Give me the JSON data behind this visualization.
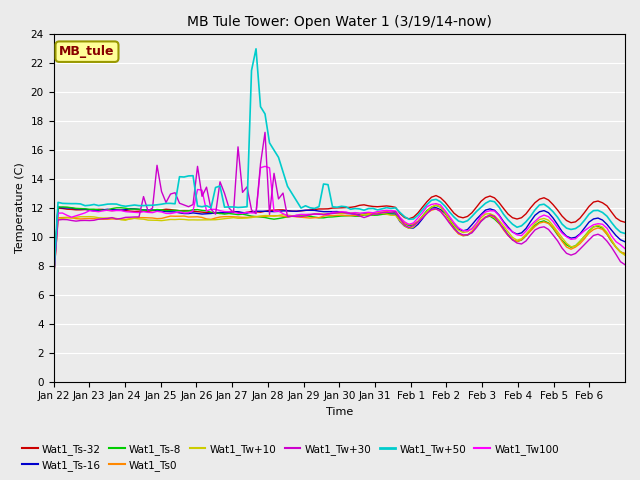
{
  "title": "MB Tule Tower: Open Water 1 (3/19/14-now)",
  "xlabel": "Time",
  "ylabel": "Temperature (C)",
  "ylim": [
    0,
    24
  ],
  "n_days": 16,
  "background_color": "#ebebeb",
  "grid_color": "#ffffff",
  "annotation_text": "MB_tule",
  "annotation_color": "#880000",
  "annotation_bg": "#ffff99",
  "annotation_edge": "#999900",
  "series": {
    "Wat1_Ts-32": {
      "color": "#cc0000",
      "lw": 1.0
    },
    "Wat1_Ts-16": {
      "color": "#0000cc",
      "lw": 1.0
    },
    "Wat1_Ts-8": {
      "color": "#00cc00",
      "lw": 1.0
    },
    "Wat1_Ts0": {
      "color": "#ff8800",
      "lw": 1.0
    },
    "Wat1_Tw+10": {
      "color": "#cccc00",
      "lw": 1.0
    },
    "Wat1_Tw+30": {
      "color": "#cc00cc",
      "lw": 1.0
    },
    "Wat1_Tw+50": {
      "color": "#00cccc",
      "lw": 1.2
    },
    "Wat1_Tw100": {
      "color": "#ff00ff",
      "lw": 1.0
    }
  },
  "tick_labels": [
    "Jan 22",
    "Jan 23",
    "Jan 24",
    "Jan 25",
    "Jan 26",
    "Jan 27",
    "Jan 28",
    "Jan 29",
    "Jan 30",
    "Jan 31",
    "Feb 1",
    "Feb 2",
    "Feb 3",
    "Feb 4",
    "Feb 5",
    "Feb 6"
  ],
  "title_fontsize": 10,
  "axis_fontsize": 8,
  "tick_fontsize": 7.5,
  "legend_fontsize": 7.5
}
